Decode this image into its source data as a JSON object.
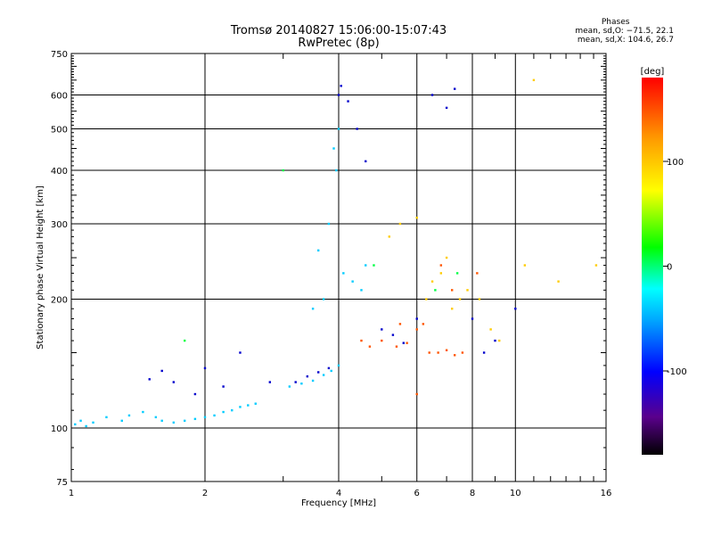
{
  "title_line1": "Tromsø 20140827 15:06:00-15:07:43",
  "title_line2": "RwPretec (8p)",
  "phases": {
    "header": "Phases",
    "line1": "mean, sd,O: −71.5, 22.1",
    "line2": "mean, sd,X: 104.6, 26.7"
  },
  "chart_data": {
    "type": "scatter",
    "title": "Tromsø 20140827 15:06:00-15:07:43",
    "subtitle": "RwPretec (8p)",
    "xlabel": "Frequency [MHz]",
    "ylabel": "Stationary phase Virtual Height [km]",
    "xscale": "log",
    "yscale": "log",
    "xlim": [
      1,
      16
    ],
    "ylim": [
      75,
      750
    ],
    "xticks": [
      1,
      2,
      4,
      6,
      8,
      10,
      16
    ],
    "yticks": [
      75,
      100,
      200,
      300,
      400,
      500,
      600,
      750
    ],
    "grid": true,
    "colorbar": {
      "label": "[deg]",
      "range": [
        -180,
        180
      ],
      "ticks": [
        100,
        0,
        -100
      ],
      "colormap": [
        "#000000",
        "#5a008c",
        "#0000ff",
        "#00aaff",
        "#00ffff",
        "#00ff00",
        "#ffff00",
        "#ff9900",
        "#ff0000"
      ]
    },
    "series": [
      {
        "color": "#00ccff",
        "points": [
          [
            1.02,
            102
          ],
          [
            1.05,
            104
          ],
          [
            1.08,
            101
          ],
          [
            1.12,
            103
          ],
          [
            1.2,
            106
          ],
          [
            1.3,
            104
          ],
          [
            1.35,
            107
          ],
          [
            1.45,
            109
          ],
          [
            1.55,
            106
          ],
          [
            1.6,
            104
          ],
          [
            1.7,
            103
          ],
          [
            1.8,
            104
          ],
          [
            1.9,
            105
          ],
          [
            2.0,
            106
          ],
          [
            2.1,
            107
          ],
          [
            2.2,
            109
          ],
          [
            2.3,
            110
          ],
          [
            2.4,
            112
          ],
          [
            2.5,
            113
          ],
          [
            2.6,
            114
          ],
          [
            3.1,
            125
          ],
          [
            3.3,
            127
          ],
          [
            3.5,
            129
          ],
          [
            3.7,
            133
          ],
          [
            3.85,
            136
          ],
          [
            4.0,
            140
          ],
          [
            3.9,
            450
          ],
          [
            4.0,
            500
          ],
          [
            3.95,
            400
          ],
          [
            3.8,
            300
          ],
          [
            3.6,
            260
          ],
          [
            4.1,
            230
          ],
          [
            4.3,
            220
          ],
          [
            4.5,
            210
          ],
          [
            3.5,
            190
          ],
          [
            3.7,
            200
          ],
          [
            4.6,
            240
          ]
        ]
      },
      {
        "color": "#0000cc",
        "points": [
          [
            1.5,
            130
          ],
          [
            1.6,
            136
          ],
          [
            1.7,
            128
          ],
          [
            1.9,
            120
          ],
          [
            2.0,
            138
          ],
          [
            2.2,
            125
          ],
          [
            2.4,
            150
          ],
          [
            2.8,
            128
          ],
          [
            3.2,
            128
          ],
          [
            3.4,
            132
          ],
          [
            3.6,
            135
          ],
          [
            3.8,
            138
          ],
          [
            4.0,
            600
          ],
          [
            4.05,
            630
          ],
          [
            4.2,
            580
          ],
          [
            4.4,
            500
          ],
          [
            4.6,
            420
          ],
          [
            5.0,
            170
          ],
          [
            5.3,
            165
          ],
          [
            5.6,
            158
          ],
          [
            6.0,
            180
          ],
          [
            6.5,
            600
          ],
          [
            7.0,
            560
          ],
          [
            7.3,
            620
          ],
          [
            8.0,
            180
          ],
          [
            8.5,
            150
          ],
          [
            9.0,
            160
          ],
          [
            10.0,
            190
          ]
        ]
      },
      {
        "color": "#ffcc00",
        "points": [
          [
            5.2,
            280
          ],
          [
            5.5,
            300
          ],
          [
            6.0,
            310
          ],
          [
            6.3,
            200
          ],
          [
            6.5,
            220
          ],
          [
            6.8,
            230
          ],
          [
            7.0,
            250
          ],
          [
            7.2,
            190
          ],
          [
            7.5,
            200
          ],
          [
            7.8,
            210
          ],
          [
            8.3,
            200
          ],
          [
            8.8,
            170
          ],
          [
            9.2,
            160
          ],
          [
            11.0,
            650
          ],
          [
            10.5,
            240
          ],
          [
            12.5,
            220
          ],
          [
            15.2,
            240
          ]
        ]
      },
      {
        "color": "#ff5500",
        "points": [
          [
            4.5,
            160
          ],
          [
            4.7,
            155
          ],
          [
            5.0,
            160
          ],
          [
            5.4,
            155
          ],
          [
            5.7,
            158
          ],
          [
            6.0,
            170
          ],
          [
            6.2,
            175
          ],
          [
            6.4,
            150
          ],
          [
            6.7,
            150
          ],
          [
            7.0,
            152
          ],
          [
            7.3,
            148
          ],
          [
            7.6,
            150
          ],
          [
            6.0,
            120
          ],
          [
            5.5,
            175
          ],
          [
            6.8,
            240
          ],
          [
            7.2,
            210
          ],
          [
            8.2,
            230
          ]
        ]
      },
      {
        "color": "#00ff44",
        "points": [
          [
            1.8,
            160
          ],
          [
            3.0,
            400
          ],
          [
            4.8,
            240
          ],
          [
            6.6,
            210
          ],
          [
            7.4,
            230
          ]
        ]
      }
    ]
  }
}
